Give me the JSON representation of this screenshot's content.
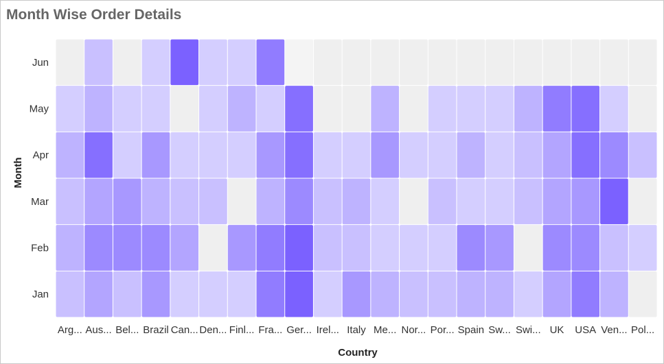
{
  "title": "Month Wise Order Details",
  "chart_data": {
    "type": "heatmap",
    "title": "Month Wise Order Details",
    "xlabel": "Country",
    "ylabel": "Month",
    "x_categories": [
      "Arg...",
      "Aus...",
      "Bel...",
      "Brazil",
      "Can...",
      "Den...",
      "Finl...",
      "Fra...",
      "Ger...",
      "Irel...",
      "Italy",
      "Me...",
      "Nor...",
      "Por...",
      "Spain",
      "Sw...",
      "Swi...",
      "UK",
      "USA",
      "Ven...",
      "Pol..."
    ],
    "y_categories": [
      "Jan",
      "Feb",
      "Mar",
      "Apr",
      "May",
      "Jun"
    ],
    "colors": {
      "low": "#d4ceff",
      "high": "#7b61ff",
      "empty": "#efefef",
      "empty_light": "#f4f4f4"
    },
    "values": [
      [
        2,
        4,
        2,
        5,
        1,
        1,
        1,
        7,
        9,
        1,
        5,
        3,
        2,
        2,
        3,
        3,
        1,
        4,
        7,
        3,
        null
      ],
      [
        3,
        6,
        6,
        6,
        4,
        null,
        5,
        7,
        9,
        2,
        2,
        1,
        1,
        1,
        6,
        5,
        null,
        6,
        6,
        2,
        1
      ],
      [
        2,
        4,
        5,
        3,
        2,
        2,
        null,
        3,
        6,
        2,
        3,
        1,
        null,
        2,
        1,
        1,
        2,
        4,
        5,
        9,
        null
      ],
      [
        3,
        8,
        1,
        5,
        1,
        1,
        1,
        5,
        8,
        1,
        1,
        5,
        1,
        1,
        3,
        1,
        2,
        4,
        8,
        6,
        2
      ],
      [
        1,
        3,
        1,
        1,
        null,
        1,
        3,
        1,
        8,
        null,
        null,
        3,
        null,
        1,
        1,
        1,
        3,
        7,
        8,
        1,
        null
      ],
      [
        null,
        2,
        null,
        1,
        9,
        1,
        1,
        7,
        null,
        null,
        null,
        null,
        null,
        null,
        null,
        null,
        null,
        null,
        null,
        null,
        null
      ]
    ]
  }
}
